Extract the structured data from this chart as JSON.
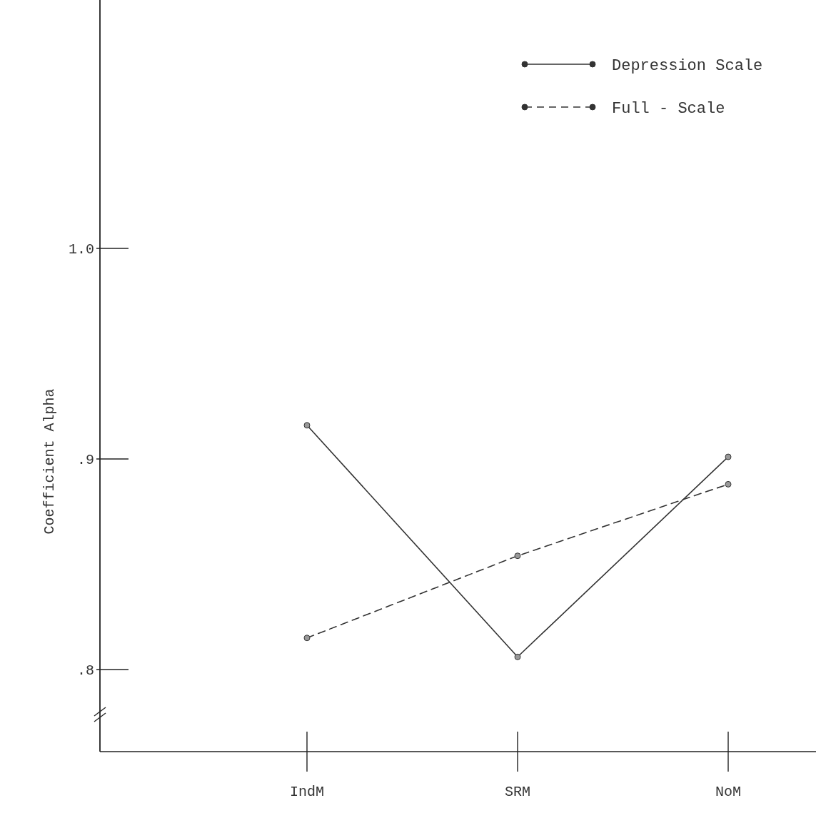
{
  "chart_data": {
    "type": "line",
    "ylabel": "Coefficient Alpha",
    "categories": [
      "IndM",
      "SRM",
      "NoM"
    ],
    "series": [
      {
        "name": "Depression Scale",
        "color": "#333333",
        "line_style": "solid",
        "values": [
          0.916,
          0.806,
          0.901
        ]
      },
      {
        "name": "Full - Scale",
        "color": "#333333",
        "line_style": "dashed",
        "values": [
          0.815,
          0.854,
          0.888
        ]
      }
    ],
    "ylim": [
      0.761,
      1.118
    ],
    "yticks": [
      {
        "value": 0.8,
        "label": ".8"
      },
      {
        "value": 0.9,
        "label": ".9"
      },
      {
        "value": 1.0,
        "label": "1.0"
      }
    ],
    "marker": "circle",
    "legend": "top right",
    "grid": false
  }
}
